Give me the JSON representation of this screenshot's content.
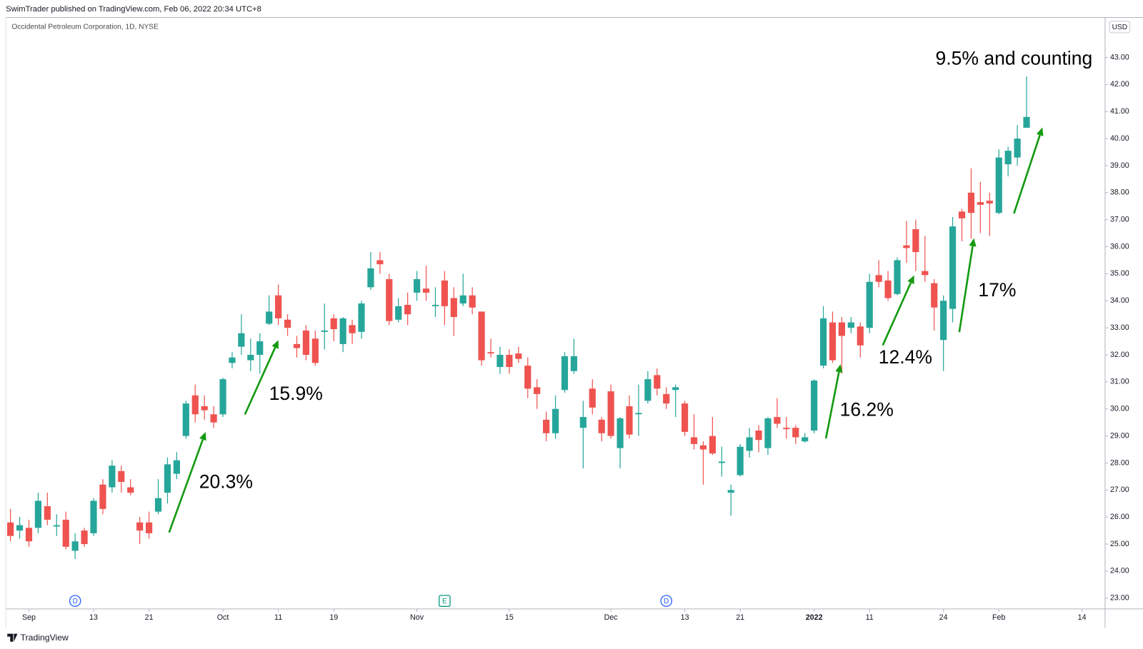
{
  "header": {
    "published": "SwimTrader published on TradingView.com, Feb 06, 2022 20:34 UTC+8",
    "logo": "TradingView"
  },
  "chart_data": {
    "type": "candlestick",
    "title": "Occidental Petroleum Corporation, 1D, NYSE",
    "currency": "USD",
    "up_color": "#26a69a",
    "down_color": "#ef5350",
    "open": [
      25.8,
      25.5,
      25.6,
      25.6,
      26.4,
      25.65,
      25.9,
      24.75,
      25.5,
      25.4,
      27.2,
      27.1,
      27.7,
      27.1,
      25.8,
      25.8,
      26.2,
      26.9,
      27.6,
      29.0,
      30.5,
      30.1,
      29.8,
      29.8,
      31.7,
      32.3,
      31.8,
      32.0,
      33.15,
      34.2,
      33.3,
      32.4,
      32.9,
      32.6,
      32.85,
      33.35,
      32.4,
      33.1,
      32.85,
      34.5,
      35.5,
      34.8,
      33.3,
      33.85,
      34.3,
      34.45,
      33.8,
      34.75,
      34.1,
      33.9,
      34.2,
      33.6,
      32.1,
      31.55,
      32.0,
      32.05,
      31.6,
      30.8,
      29.6,
      29.1,
      30.7,
      31.4,
      29.3,
      30.75,
      29.6,
      30.65,
      28.55,
      30.1,
      29.8,
      30.3,
      31.25,
      30.55,
      30.7,
      30.2,
      28.95,
      28.65,
      29.0,
      28.0,
      26.9,
      27.55,
      28.45,
      29.2,
      28.55,
      29.7,
      29.3,
      29.3,
      28.8,
      29.2,
      31.6,
      33.2,
      33.2,
      33.0,
      33.05,
      33.0,
      34.95,
      34.75,
      34.25,
      36.05,
      36.65,
      35.1,
      34.65,
      32.55,
      33.7,
      37.3,
      38.0,
      37.65,
      37.7,
      37.25,
      39.05,
      39.3,
      40.4
    ],
    "high": [
      26.3,
      26.0,
      25.9,
      26.9,
      26.9,
      26.1,
      26.2,
      25.4,
      25.6,
      26.7,
      27.4,
      28.1,
      27.9,
      27.4,
      26.0,
      26.2,
      27.4,
      28.2,
      28.4,
      30.3,
      30.9,
      30.5,
      30.1,
      31.15,
      32.1,
      33.5,
      32.6,
      32.8,
      34.2,
      34.6,
      33.5,
      32.7,
      33.1,
      32.9,
      33.9,
      33.5,
      33.4,
      33.3,
      34.0,
      35.8,
      35.8,
      35.0,
      34.1,
      34.3,
      35.1,
      35.3,
      34.5,
      35.1,
      34.5,
      35.0,
      34.5,
      33.6,
      32.6,
      32.3,
      32.2,
      32.3,
      31.9,
      31.1,
      29.9,
      30.5,
      32.1,
      32.6,
      30.3,
      31.1,
      29.7,
      30.9,
      29.7,
      30.5,
      30.9,
      31.4,
      31.5,
      30.8,
      30.9,
      30.3,
      29.8,
      28.8,
      29.7,
      28.6,
      27.2,
      28.7,
      29.3,
      29.4,
      29.7,
      30.4,
      29.7,
      29.4,
      29.1,
      31.1,
      33.8,
      33.6,
      33.4,
      33.4,
      33.2,
      35.0,
      35.5,
      35.1,
      35.6,
      36.95,
      37.0,
      36.4,
      34.8,
      34.2,
      37.1,
      37.4,
      38.9,
      38.4,
      38.0,
      39.6,
      39.7,
      40.5,
      42.3
    ],
    "low": [
      25.1,
      25.2,
      24.9,
      25.4,
      25.7,
      25.3,
      24.8,
      24.45,
      24.9,
      25.3,
      26.1,
      26.9,
      26.9,
      26.8,
      25.0,
      25.2,
      26.1,
      26.5,
      27.4,
      28.9,
      29.5,
      29.6,
      29.3,
      29.7,
      31.5,
      32.0,
      31.4,
      31.3,
      33.1,
      33.1,
      32.7,
      31.9,
      31.8,
      31.6,
      32.2,
      32.5,
      32.1,
      32.4,
      32.6,
      34.4,
      35.0,
      33.1,
      33.2,
      33.1,
      34.0,
      34.0,
      33.4,
      33.1,
      32.7,
      33.8,
      33.5,
      31.6,
      31.9,
      31.3,
      31.3,
      31.7,
      30.4,
      30.0,
      28.8,
      28.9,
      30.6,
      31.3,
      27.8,
      29.8,
      28.8,
      28.9,
      27.8,
      28.9,
      29.0,
      30.2,
      30.5,
      30.0,
      29.7,
      29.0,
      28.5,
      27.2,
      28.3,
      27.5,
      26.05,
      27.5,
      28.2,
      28.4,
      28.3,
      29.3,
      28.9,
      28.7,
      28.75,
      29.1,
      31.5,
      31.7,
      31.3,
      32.8,
      31.9,
      32.8,
      34.5,
      34.0,
      34.2,
      35.4,
      35.1,
      34.7,
      32.9,
      31.4,
      33.2,
      36.2,
      36.3,
      36.5,
      36.4,
      37.2,
      38.6,
      39.0,
      40.4
    ],
    "close": [
      25.3,
      25.7,
      25.1,
      26.6,
      25.9,
      25.7,
      24.9,
      25.1,
      25.0,
      26.6,
      26.3,
      27.9,
      27.3,
      26.9,
      25.5,
      25.4,
      26.7,
      27.95,
      28.1,
      30.2,
      29.8,
      29.95,
      29.5,
      31.1,
      31.9,
      32.8,
      32.0,
      32.5,
      33.6,
      33.35,
      33.0,
      32.25,
      32.0,
      31.7,
      32.9,
      32.95,
      33.35,
      32.8,
      33.9,
      35.2,
      35.35,
      33.25,
      33.8,
      33.5,
      34.8,
      34.3,
      33.85,
      33.8,
      33.4,
      34.2,
      33.75,
      31.8,
      32.05,
      32.0,
      31.55,
      31.85,
      30.75,
      30.55,
      29.1,
      30.0,
      31.95,
      31.95,
      29.7,
      30.05,
      29.1,
      29.0,
      29.65,
      29.05,
      29.85,
      31.1,
      30.75,
      30.2,
      30.8,
      29.15,
      28.7,
      28.5,
      28.35,
      28.05,
      27.0,
      28.6,
      28.95,
      28.85,
      29.65,
      29.45,
      29.25,
      28.95,
      28.95,
      31.05,
      33.35,
      31.8,
      32.7,
      33.2,
      32.35,
      34.7,
      34.7,
      34.1,
      35.5,
      35.95,
      35.8,
      34.95,
      33.75,
      34.0,
      36.75,
      37.05,
      37.25,
      37.55,
      37.6,
      39.3,
      39.55,
      40.0,
      40.8
    ],
    "xlim": [
      -0.5,
      118.5
    ],
    "xticks": [
      {
        "value": 2,
        "label": "Sep"
      },
      {
        "value": 9,
        "label": "13"
      },
      {
        "value": 15,
        "label": "21"
      },
      {
        "value": 23,
        "label": "Oct"
      },
      {
        "value": 29,
        "label": "11"
      },
      {
        "value": 35,
        "label": "19"
      },
      {
        "value": 44,
        "label": "Nov"
      },
      {
        "value": 54,
        "label": "15"
      },
      {
        "value": 65,
        "label": "Dec"
      },
      {
        "value": 73,
        "label": "13"
      },
      {
        "value": 79,
        "label": "21"
      },
      {
        "value": 87,
        "label": "2022"
      },
      {
        "value": 93,
        "label": "11"
      },
      {
        "value": 101,
        "label": "24"
      },
      {
        "value": 107,
        "label": "Feb"
      },
      {
        "value": 116,
        "label": "14"
      }
    ],
    "ylim": [
      22.6,
      44.48
    ],
    "yticks": [
      {
        "value": 23,
        "label": "23.00"
      },
      {
        "value": 24,
        "label": "24.00"
      },
      {
        "value": 25,
        "label": "25.00"
      },
      {
        "value": 26,
        "label": "26.00"
      },
      {
        "value": 27,
        "label": "27.00"
      },
      {
        "value": 28,
        "label": "28.00"
      },
      {
        "value": 29,
        "label": "29.00"
      },
      {
        "value": 30,
        "label": "30.00"
      },
      {
        "value": 31,
        "label": "31.00"
      },
      {
        "value": 32,
        "label": "32.00"
      },
      {
        "value": 33,
        "label": "33.00"
      },
      {
        "value": 34,
        "label": "34.00"
      },
      {
        "value": 35,
        "label": "35.00"
      },
      {
        "value": 36,
        "label": "36.00"
      },
      {
        "value": 37,
        "label": "37.00"
      },
      {
        "value": 38,
        "label": "38.00"
      },
      {
        "value": 39,
        "label": "39.00"
      },
      {
        "value": 40,
        "label": "40.00"
      },
      {
        "value": 41,
        "label": "41.00"
      },
      {
        "value": 42,
        "label": "42.00"
      },
      {
        "value": 43,
        "label": "43.00"
      }
    ],
    "events": [
      {
        "x": 7,
        "label": "D",
        "shape": "circle",
        "color": "#2962ff"
      },
      {
        "x": 47,
        "label": "E",
        "shape": "square",
        "color": "#089981"
      },
      {
        "x": 71,
        "label": "D",
        "shape": "circle",
        "color": "#2962ff"
      }
    ],
    "annotation_color": "#159a12",
    "annotations": [
      "20.3%",
      "15.9%",
      "16.2%",
      "12.4%",
      "17%",
      "9.5% and counting"
    ]
  }
}
